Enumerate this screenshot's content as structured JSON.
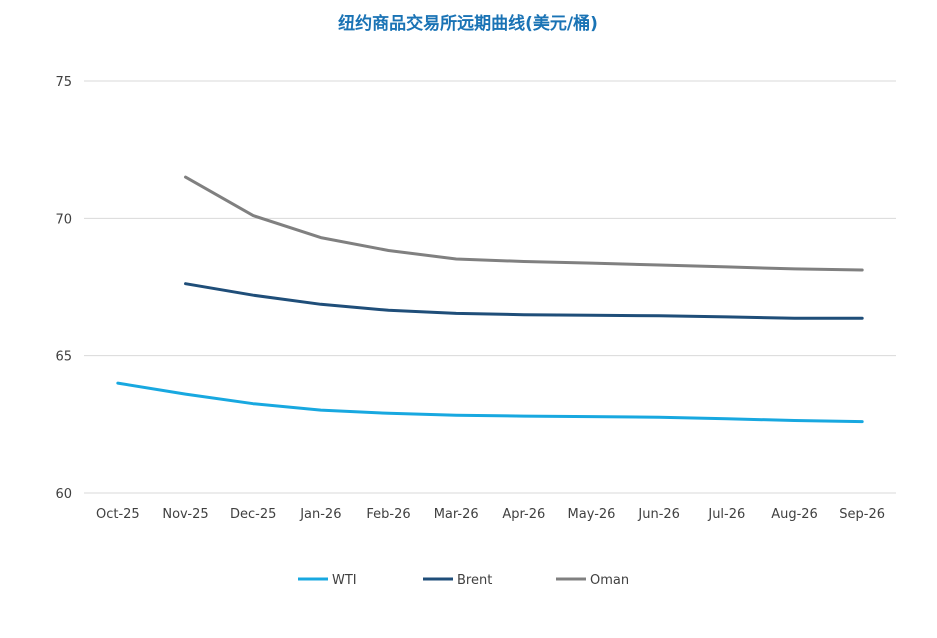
{
  "chart_data": {
    "type": "line",
    "title": "纽约商品交易所远期曲线(美元/桶)",
    "xlabel": "",
    "ylabel": "",
    "categories": [
      "Oct-25",
      "Nov-25",
      "Dec-25",
      "Jan-26",
      "Feb-26",
      "Mar-26",
      "Apr-26",
      "May-26",
      "Jun-26",
      "Jul-26",
      "Aug-26",
      "Sep-26"
    ],
    "ylim": [
      60,
      75
    ],
    "yticks": [
      60,
      65,
      70,
      75
    ],
    "grid": true,
    "legend_position": "bottom",
    "series": [
      {
        "name": "WTI",
        "color": "#18a8e0",
        "values": [
          64.0,
          63.6,
          63.25,
          63.02,
          62.9,
          62.83,
          62.8,
          62.78,
          62.76,
          62.7,
          62.64,
          62.6
        ]
      },
      {
        "name": "Brent",
        "color": "#1f4e79",
        "values": [
          null,
          67.62,
          67.2,
          66.87,
          66.65,
          66.54,
          66.49,
          66.47,
          66.45,
          66.41,
          66.36,
          66.36
        ]
      },
      {
        "name": "Oman",
        "color": "#808080",
        "values": [
          null,
          71.5,
          70.1,
          69.3,
          68.83,
          68.52,
          68.43,
          68.37,
          68.3,
          68.23,
          68.16,
          68.12
        ]
      }
    ]
  }
}
